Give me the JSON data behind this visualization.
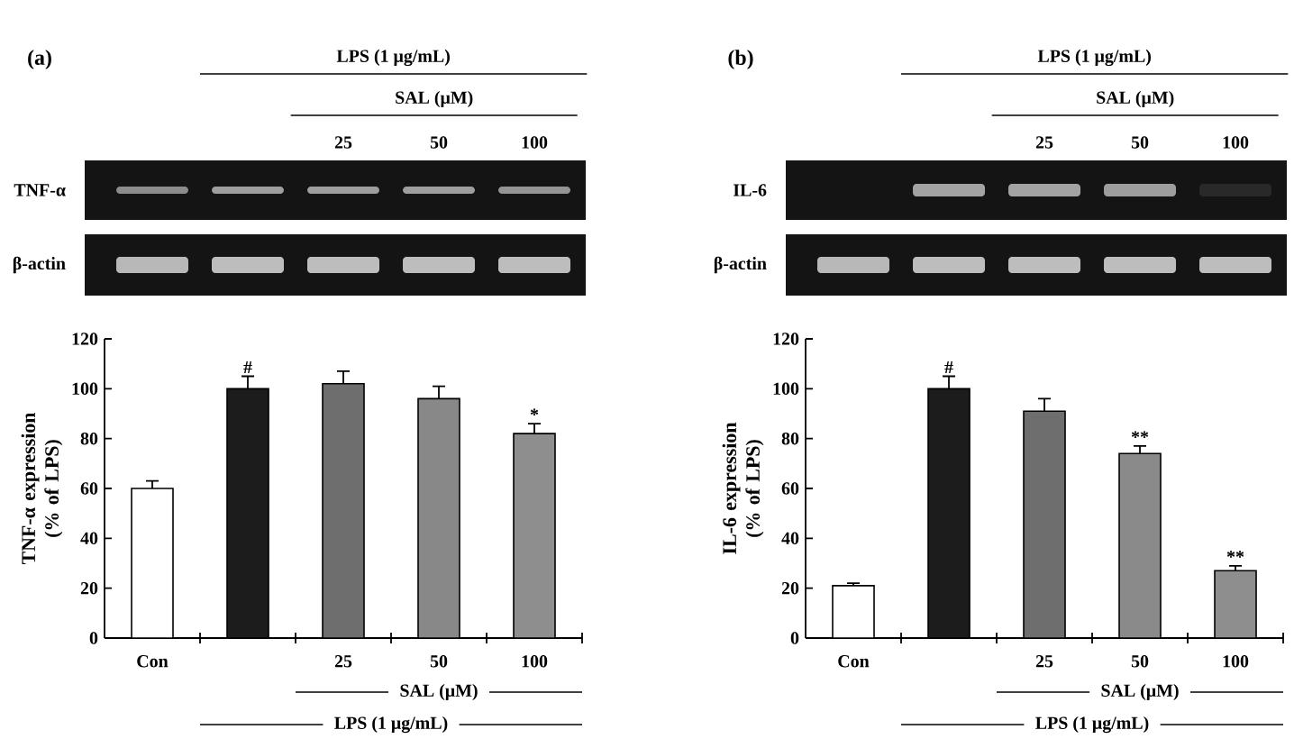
{
  "chart_data": [
    {
      "type": "bar",
      "title": "(a)",
      "ylabel": "TNF-α expression\n(% of LPS)",
      "categories": [
        "Con",
        null,
        "25",
        "50",
        "100"
      ],
      "values": [
        60,
        100,
        102,
        96,
        82
      ],
      "errors": [
        [
          60,
          63
        ],
        [
          100,
          105
        ],
        [
          102,
          107
        ],
        [
          96,
          101
        ],
        [
          82,
          86
        ]
      ],
      "colors": [
        "#ffffff",
        "#1c1c1c",
        "#6e6e6e",
        "#888888",
        "#8e8e8e"
      ],
      "value_labels": [
        null,
        "#",
        null,
        null,
        "*"
      ],
      "ylim": [
        0,
        120
      ],
      "yticks": [
        0,
        20,
        40,
        60,
        80,
        100,
        120
      ],
      "annotations": [
        "LPS (1 μg/mL)",
        "SAL (μM)",
        "25",
        "50",
        "100",
        "TNF-α",
        "β-actin",
        "SAL (μM)",
        "LPS (1 μg/mL)"
      ]
    },
    {
      "type": "bar",
      "title": "(b)",
      "ylabel": "IL-6 expression\n(% of LPS)",
      "categories": [
        "Con",
        null,
        "25",
        "50",
        "100"
      ],
      "values": [
        21,
        100,
        91,
        74,
        27
      ],
      "errors": [
        [
          21,
          22
        ],
        [
          100,
          105
        ],
        [
          91,
          96
        ],
        [
          74,
          77
        ],
        [
          27,
          29
        ]
      ],
      "colors": [
        "#ffffff",
        "#1c1c1c",
        "#6e6e6e",
        "#8a8a8a",
        "#8e8e8e"
      ],
      "value_labels": [
        null,
        "#",
        null,
        "**",
        "**"
      ],
      "ylim": [
        0,
        120
      ],
      "yticks": [
        0,
        20,
        40,
        60,
        80,
        100,
        120
      ],
      "annotations": [
        "LPS (1 μg/mL)",
        "SAL (μM)",
        "25",
        "50",
        "100",
        "IL-6",
        "β-actin",
        "SAL (μM)",
        "LPS (1 μg/mL)"
      ]
    }
  ]
}
